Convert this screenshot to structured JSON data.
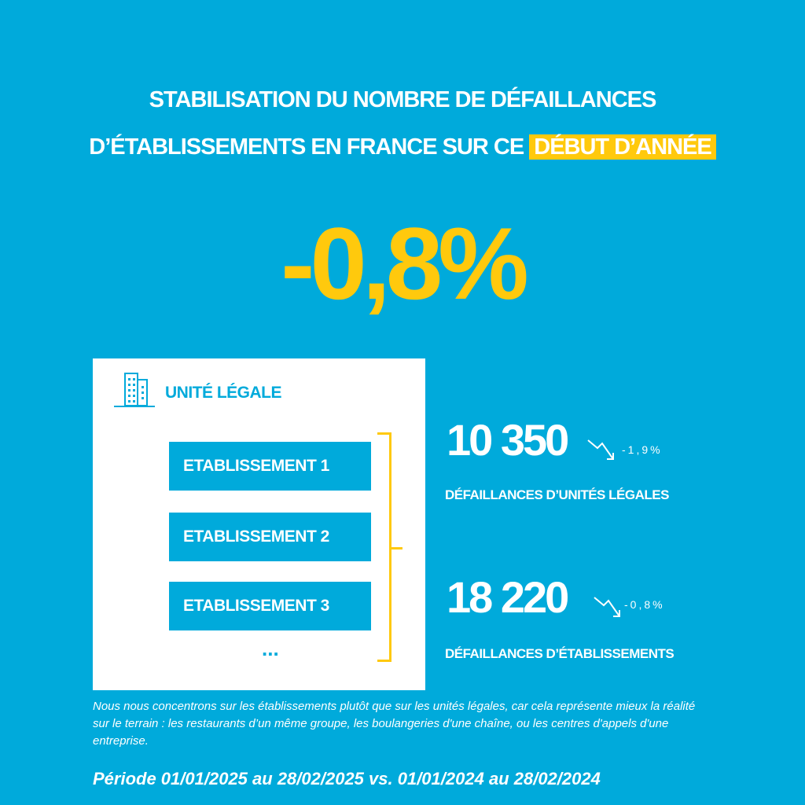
{
  "title": {
    "line1": "STABILISATION DU NOMBRE DE DÉFAILLANCES",
    "line2_prefix": "D’ÉTABLISSEMENTS EN FRANCE SUR CE",
    "line2_highlight": "DÉBUT D’ANNÉE"
  },
  "headline_change": "-0,8%",
  "diagram": {
    "unit_label": "UNITÉ LÉGALE",
    "establishments": [
      "ETABLISSEMENT 1",
      "ETABLISSEMENT 2",
      "ETABLISSEMENT 3"
    ],
    "more": "..."
  },
  "stats": [
    {
      "value": "10 350",
      "change": "-1,9%",
      "label": "DÉFAILLANCES D’UNITÉS LÉGALES"
    },
    {
      "value": "18 220",
      "change": "-0,8%",
      "label": "DÉFAILLANCES D’ÉTABLISSEMENTS"
    }
  ],
  "note": "Nous nous concentrons sur les établissements plutôt que sur les unités légales, car cela représente mieux la réalité sur le terrain : les restaurants d’un même groupe, les boulangeries d'une chaîne, ou les centres d'appels d'une entreprise.",
  "period": "Période 01/01/2025 au 28/02/2025 vs. 01/01/2024 au 28/02/2024",
  "colors": {
    "background": "#00aadb",
    "accent": "#ffc90d"
  }
}
